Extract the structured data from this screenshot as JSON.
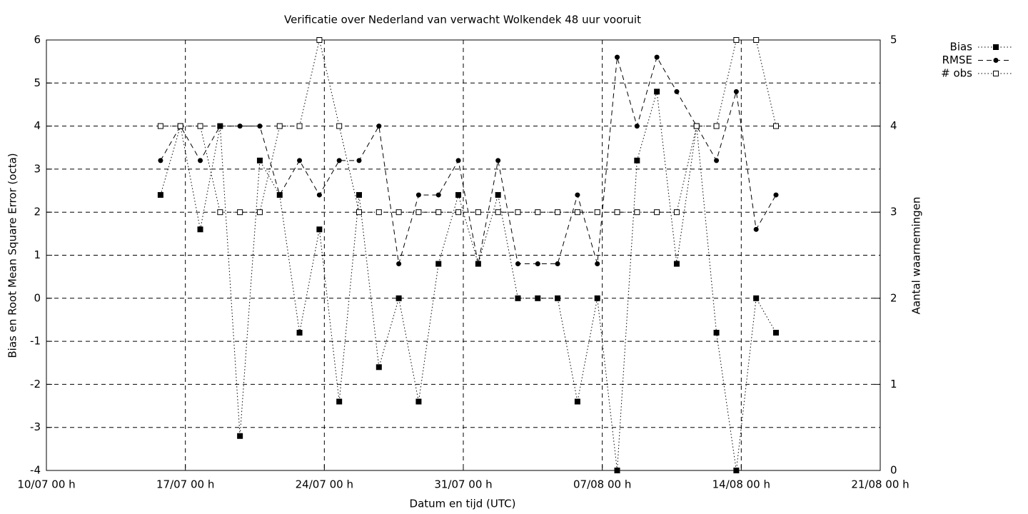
{
  "chart_data": {
    "type": "line",
    "title": "Verificatie over Nederland van verwacht Wolkendek 48 uur vooruit",
    "x_label": "Datum en tijd (UTC)",
    "y_label": "Bias en Root Mean Square Error (octa)",
    "y2_label": "Aantal waarnemingen",
    "x": [
      "15/07 18 h",
      "16/07 18 h",
      "17/07 18 h",
      "18/07 18 h",
      "19/07 18 h",
      "20/07 18 h",
      "21/07 18 h",
      "22/07 18 h",
      "23/07 18 h",
      "24/07 18 h",
      "25/07 18 h",
      "26/07 18 h",
      "27/07 18 h",
      "28/07 18 h",
      "29/07 18 h",
      "30/07 18 h",
      "31/07 18 h",
      "01/08 18 h",
      "02/08 18 h",
      "03/08 18 h",
      "04/08 18 h",
      "05/08 18 h",
      "06/08 18 h",
      "07/08 18 h",
      "08/08 18 h",
      "09/08 18 h",
      "10/08 18 h",
      "11/08 18 h",
      "12/08 18 h",
      "13/08 18 h",
      "14/08 18 h",
      "15/08 18 h"
    ],
    "xlim": [
      "10/07 00 h",
      "21/08 00 h"
    ],
    "xticks": [
      "10/07 00 h",
      "17/07 00 h",
      "24/07 00 h",
      "31/07 00 h",
      "07/08 00 h",
      "14/08 00 h",
      "21/08 00 h"
    ],
    "ylim": [
      -4,
      6
    ],
    "yticks": [
      -4,
      -3,
      -2,
      -1,
      0,
      1,
      2,
      3,
      4,
      5,
      6
    ],
    "y2lim": [
      0,
      5
    ],
    "y2ticks": [
      0,
      1,
      2,
      3,
      4,
      5
    ],
    "grid": true,
    "legend": "outside-top-right",
    "series": [
      {
        "name": "Bias",
        "color": "#000000",
        "marker": "filled-square",
        "line_style": "dotted",
        "axis": "y",
        "values": [
          2.4,
          4,
          1.6,
          4,
          -3.2,
          3.2,
          2.4,
          -0.8,
          1.6,
          -2.4,
          2.4,
          -1.6,
          0,
          -2.4,
          0.8,
          2.4,
          0.8,
          2.4,
          0,
          0,
          0,
          -2.4,
          0,
          -4,
          3.2,
          4.8,
          0.8,
          4,
          -0.8,
          -4,
          0,
          -0.8
        ]
      },
      {
        "name": "RMSE",
        "color": "#000000",
        "marker": "filled-circle",
        "line_style": "dashed",
        "axis": "y",
        "values": [
          3.2,
          4,
          3.2,
          4,
          4,
          4,
          2.4,
          3.2,
          2.4,
          3.2,
          3.2,
          4,
          0.8,
          2.4,
          2.4,
          3.2,
          0.8,
          3.2,
          0.8,
          0.8,
          0.8,
          2.4,
          0.8,
          5.6,
          4,
          5.6,
          4.8,
          4,
          3.2,
          4.8,
          1.6,
          2.4
        ]
      },
      {
        "name": "# obs",
        "color": "#000000",
        "marker": "open-square",
        "line_style": "dotted",
        "axis": "y2",
        "values": [
          4,
          4,
          4,
          3,
          3,
          3,
          4,
          4,
          5,
          4,
          3,
          3,
          3,
          3,
          3,
          3,
          3,
          3,
          3,
          3,
          3,
          3,
          3,
          3,
          3,
          3,
          3,
          4,
          4,
          5,
          5,
          4
        ]
      }
    ]
  }
}
